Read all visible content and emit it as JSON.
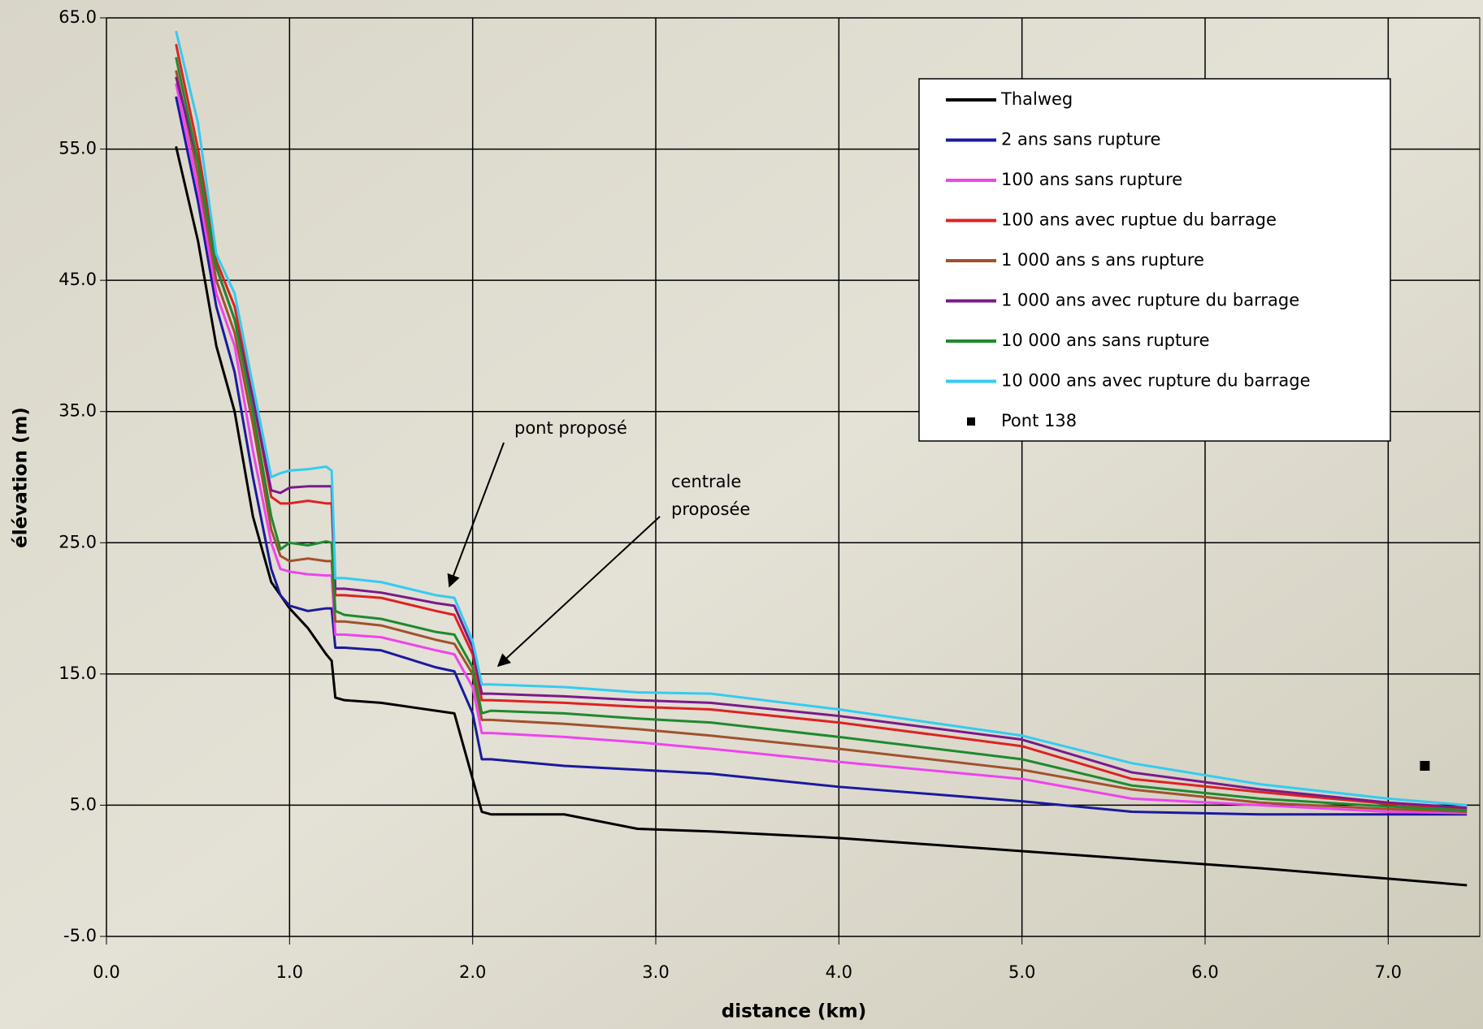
{
  "chart_data": {
    "type": "line",
    "x_label": "distance (km)",
    "y_label": "élévation (m)",
    "xlim": [
      0,
      7.5
    ],
    "ylim": [
      -5,
      65
    ],
    "xticks": [
      {
        "value": 0,
        "label": "0.0"
      },
      {
        "value": 1,
        "label": "1.0"
      },
      {
        "value": 2,
        "label": "2.0"
      },
      {
        "value": 3,
        "label": "3.0"
      },
      {
        "value": 4,
        "label": "4.0"
      },
      {
        "value": 5,
        "label": "5.0"
      },
      {
        "value": 6,
        "label": "6.0"
      },
      {
        "value": 7,
        "label": "7.0"
      }
    ],
    "yticks": [
      {
        "value": -5,
        "label": "-5.0"
      },
      {
        "value": 5,
        "label": "5.0"
      },
      {
        "value": 15,
        "label": "15.0"
      },
      {
        "value": 25,
        "label": "25.0"
      },
      {
        "value": 35,
        "label": "35.0"
      },
      {
        "value": 45,
        "label": "45.0"
      },
      {
        "value": 55,
        "label": "55.0"
      },
      {
        "value": 65,
        "label": "65.0"
      }
    ],
    "grid": true,
    "legend": "top-right",
    "x": [
      0.38,
      0.5,
      0.6,
      0.7,
      0.8,
      0.9,
      0.95,
      1.0,
      1.1,
      1.2,
      1.23,
      1.25,
      1.3,
      1.5,
      1.8,
      1.9,
      2.0,
      2.05,
      2.1,
      2.5,
      2.9,
      3.3,
      4.0,
      5.0,
      5.6,
      6.3,
      7.0,
      7.43
    ],
    "series": [
      {
        "name": "Thalweg",
        "color": "#000000",
        "values": [
          55.2,
          48,
          40,
          35,
          27,
          22,
          21,
          20,
          18.5,
          16.5,
          16,
          13.2,
          13,
          12.8,
          12.2,
          12,
          7,
          4.5,
          4.3,
          4.3,
          3.2,
          3.0,
          2.5,
          1.5,
          0.9,
          0.2,
          -0.6,
          -1.1
        ]
      },
      {
        "name": "2 ans sans rupture",
        "color": "#1a1a9c",
        "values": [
          59,
          51,
          43,
          38,
          30,
          23,
          21,
          20.2,
          19.8,
          20,
          20,
          17,
          17,
          16.8,
          15.5,
          15.2,
          12,
          8.5,
          8.5,
          8.0,
          7.7,
          7.4,
          6.4,
          5.3,
          4.5,
          4.3,
          4.3,
          4.3
        ]
      },
      {
        "name": "100 ans sans rupture",
        "color": "#ee44ee",
        "values": [
          60,
          52,
          44,
          40,
          32,
          25,
          23,
          22.8,
          22.6,
          22.5,
          22.5,
          18,
          18,
          17.8,
          16.8,
          16.5,
          14,
          10.5,
          10.5,
          10.2,
          9.8,
          9.3,
          8.3,
          7.0,
          5.5,
          5,
          4.5,
          4.4
        ]
      },
      {
        "name": "100 ans avec ruptue du barrage",
        "color": "#dd2222",
        "values": [
          63,
          55,
          46.5,
          43,
          36,
          28.5,
          28,
          28,
          28.2,
          28,
          28,
          21,
          21,
          20.8,
          19.8,
          19.5,
          16.5,
          13,
          13,
          12.8,
          12.5,
          12.3,
          11.3,
          9.5,
          7.0,
          6.0,
          5.1,
          4.7
        ]
      },
      {
        "name": "1 000 ans s ans rupture",
        "color": "#a0522d",
        "values": [
          61,
          53,
          45,
          41,
          34,
          26,
          24,
          23.6,
          23.8,
          23.6,
          23.6,
          19,
          19,
          18.7,
          17.6,
          17.3,
          15,
          11.5,
          11.5,
          11.2,
          10.8,
          10.3,
          9.3,
          7.7,
          6.2,
          5.2,
          4.7,
          4.5
        ]
      },
      {
        "name": "1 000 ans avec rupture du barrage",
        "color": "#7a1a8a",
        "values": [
          60.5,
          54,
          46,
          42,
          36,
          29,
          28.8,
          29.2,
          29.3,
          29.3,
          29.3,
          21.5,
          21.5,
          21.2,
          20.4,
          20.2,
          17,
          13.5,
          13.5,
          13.3,
          13,
          12.8,
          11.8,
          10,
          7.5,
          6.2,
          5.2,
          4.8
        ]
      },
      {
        "name": "10 000 ans sans rupture",
        "color": "#1e8a2e",
        "values": [
          62,
          54,
          46,
          42,
          35,
          27,
          24.5,
          25,
          24.8,
          25.1,
          25,
          19.8,
          19.5,
          19.2,
          18.2,
          18,
          15.5,
          12,
          12.2,
          12,
          11.6,
          11.3,
          10.2,
          8.5,
          6.5,
          5.5,
          4.9,
          4.6
        ]
      },
      {
        "name": "10 000 ans avec rupture du barrage",
        "color": "#33ccf0",
        "values": [
          64,
          57,
          47,
          44,
          37,
          30,
          30.3,
          30.5,
          30.6,
          30.8,
          30.5,
          22.3,
          22.3,
          22,
          21,
          20.8,
          17.5,
          14.2,
          14.2,
          14,
          13.6,
          13.5,
          12.3,
          10.3,
          8.2,
          6.6,
          5.5,
          5
        ]
      }
    ],
    "points": {
      "name": "Pont 138",
      "color": "#000000",
      "x": [
        7.2
      ],
      "values": [
        8.0
      ]
    },
    "annotations": [
      {
        "lines": [
          "pont proposé"
        ]
      },
      {
        "lines": [
          "centrale",
          "proposée"
        ]
      }
    ]
  }
}
